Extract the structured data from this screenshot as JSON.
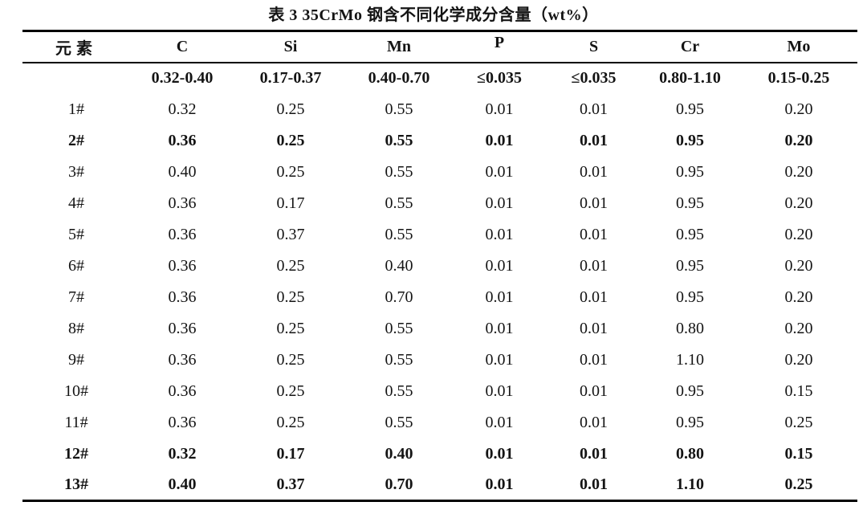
{
  "title": "表 3 35CrMo 钢含不同化学成分含量（wt%）",
  "colors": {
    "background": "#ffffff",
    "text": "#141414",
    "border": "#000000"
  },
  "table": {
    "columns": [
      "元素",
      "C",
      "Si",
      "Mn",
      "P",
      "S",
      "Cr",
      "Mo"
    ],
    "spec_row": [
      "",
      "0.32-0.40",
      "0.17-0.37",
      "0.40-0.70",
      "≤0.035",
      "≤0.035",
      "0.80-1.10",
      "0.15-0.25"
    ],
    "rows": [
      {
        "label": "1#",
        "bold": false,
        "values": [
          "0.32",
          "0.25",
          "0.55",
          "0.01",
          "0.01",
          "0.95",
          "0.20"
        ]
      },
      {
        "label": "2#",
        "bold": true,
        "values": [
          "0.36",
          "0.25",
          "0.55",
          "0.01",
          "0.01",
          "0.95",
          "0.20"
        ]
      },
      {
        "label": "3#",
        "bold": false,
        "values": [
          "0.40",
          "0.25",
          "0.55",
          "0.01",
          "0.01",
          "0.95",
          "0.20"
        ]
      },
      {
        "label": "4#",
        "bold": false,
        "values": [
          "0.36",
          "0.17",
          "0.55",
          "0.01",
          "0.01",
          "0.95",
          "0.20"
        ]
      },
      {
        "label": "5#",
        "bold": false,
        "values": [
          "0.36",
          "0.37",
          "0.55",
          "0.01",
          "0.01",
          "0.95",
          "0.20"
        ]
      },
      {
        "label": "6#",
        "bold": false,
        "values": [
          "0.36",
          "0.25",
          "0.40",
          "0.01",
          "0.01",
          "0.95",
          "0.20"
        ]
      },
      {
        "label": "7#",
        "bold": false,
        "values": [
          "0.36",
          "0.25",
          "0.70",
          "0.01",
          "0.01",
          "0.95",
          "0.20"
        ]
      },
      {
        "label": "8#",
        "bold": false,
        "values": [
          "0.36",
          "0.25",
          "0.55",
          "0.01",
          "0.01",
          "0.80",
          "0.20"
        ]
      },
      {
        "label": "9#",
        "bold": false,
        "values": [
          "0.36",
          "0.25",
          "0.55",
          "0.01",
          "0.01",
          "1.10",
          "0.20"
        ]
      },
      {
        "label": "10#",
        "bold": false,
        "values": [
          "0.36",
          "0.25",
          "0.55",
          "0.01",
          "0.01",
          "0.95",
          "0.15"
        ]
      },
      {
        "label": "11#",
        "bold": false,
        "values": [
          "0.36",
          "0.25",
          "0.55",
          "0.01",
          "0.01",
          "0.95",
          "0.25"
        ]
      },
      {
        "label": "12#",
        "bold": true,
        "values": [
          "0.32",
          "0.17",
          "0.40",
          "0.01",
          "0.01",
          "0.80",
          "0.15"
        ]
      },
      {
        "label": "13#",
        "bold": true,
        "values": [
          "0.40",
          "0.37",
          "0.70",
          "0.01",
          "0.01",
          "1.10",
          "0.25"
        ]
      }
    ]
  }
}
